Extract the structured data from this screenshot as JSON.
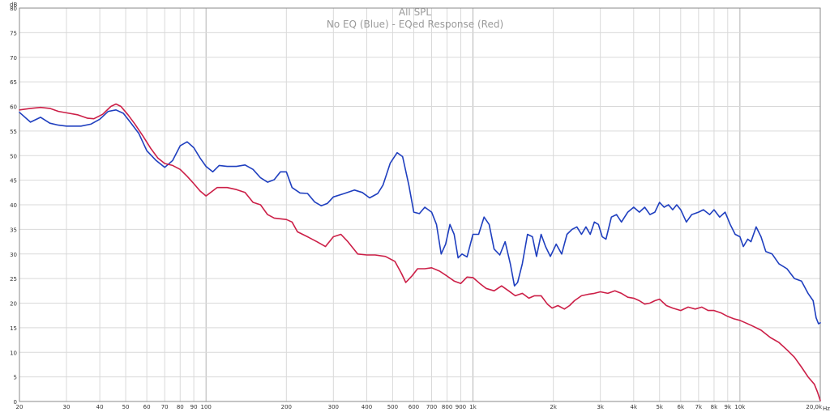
{
  "chart_data": {
    "type": "line",
    "title": "All SPL",
    "subtitle": "No EQ (Blue) - EQed Response (Red)",
    "xlabel": "",
    "ylabel": "",
    "x_unit": "Hz",
    "y_unit": "dB",
    "x_scale": "log",
    "xlim": [
      20,
      20000
    ],
    "ylim": [
      0,
      80
    ],
    "grid": true,
    "y_ticks": [
      {
        "v": 0,
        "label": "0"
      },
      {
        "v": 5,
        "label": "5"
      },
      {
        "v": 10,
        "label": "10"
      },
      {
        "v": 15,
        "label": "15"
      },
      {
        "v": 20,
        "label": "20"
      },
      {
        "v": 25,
        "label": "25"
      },
      {
        "v": 30,
        "label": "30"
      },
      {
        "v": 35,
        "label": "35"
      },
      {
        "v": 40,
        "label": "40"
      },
      {
        "v": 45,
        "label": "45"
      },
      {
        "v": 50,
        "label": "50"
      },
      {
        "v": 55,
        "label": "55"
      },
      {
        "v": 60,
        "label": "60"
      },
      {
        "v": 65,
        "label": "65"
      },
      {
        "v": 70,
        "label": "70"
      },
      {
        "v": 75,
        "label": "75"
      },
      {
        "v": 80,
        "label": "80"
      }
    ],
    "x_ticks": [
      {
        "v": 20,
        "label": "20"
      },
      {
        "v": 30,
        "label": "30"
      },
      {
        "v": 40,
        "label": "40"
      },
      {
        "v": 50,
        "label": "50"
      },
      {
        "v": 60,
        "label": "60"
      },
      {
        "v": 70,
        "label": "70"
      },
      {
        "v": 80,
        "label": "80"
      },
      {
        "v": 90,
        "label": "90"
      },
      {
        "v": 100,
        "label": "100"
      },
      {
        "v": 200,
        "label": "200"
      },
      {
        "v": 300,
        "label": "300"
      },
      {
        "v": 400,
        "label": "400"
      },
      {
        "v": 500,
        "label": "500"
      },
      {
        "v": 600,
        "label": "600"
      },
      {
        "v": 700,
        "label": "700"
      },
      {
        "v": 800,
        "label": "800"
      },
      {
        "v": 900,
        "label": "900"
      },
      {
        "v": 1000,
        "label": "1k"
      },
      {
        "v": 2000,
        "label": "2k"
      },
      {
        "v": 3000,
        "label": "3k"
      },
      {
        "v": 4000,
        "label": "4k"
      },
      {
        "v": 5000,
        "label": "5k"
      },
      {
        "v": 6000,
        "label": "6k"
      },
      {
        "v": 7000,
        "label": "7k"
      },
      {
        "v": 8000,
        "label": "8k"
      },
      {
        "v": 9000,
        "label": "9k"
      },
      {
        "v": 10000,
        "label": "10k"
      },
      {
        "v": 20000,
        "label": "20,0k"
      }
    ],
    "series": [
      {
        "color": "#1f3fbf",
        "points": [
          [
            20,
            58.8
          ],
          [
            22,
            56.8
          ],
          [
            24,
            57.8
          ],
          [
            26,
            56.6
          ],
          [
            28,
            56.2
          ],
          [
            30,
            56.0
          ],
          [
            34,
            56.0
          ],
          [
            37,
            56.4
          ],
          [
            40,
            57.4
          ],
          [
            43,
            59.0
          ],
          [
            46,
            59.3
          ],
          [
            49,
            58.6
          ],
          [
            52,
            56.8
          ],
          [
            56,
            54.5
          ],
          [
            60,
            51.0
          ],
          [
            65,
            49.0
          ],
          [
            70,
            47.6
          ],
          [
            75,
            49.0
          ],
          [
            80,
            52.0
          ],
          [
            85,
            52.8
          ],
          [
            90,
            51.6
          ],
          [
            95,
            49.5
          ],
          [
            100,
            47.8
          ],
          [
            106,
            46.7
          ],
          [
            112,
            48.0
          ],
          [
            120,
            47.8
          ],
          [
            130,
            47.8
          ],
          [
            140,
            48.1
          ],
          [
            150,
            47.2
          ],
          [
            160,
            45.5
          ],
          [
            170,
            44.6
          ],
          [
            180,
            45.1
          ],
          [
            190,
            46.7
          ],
          [
            200,
            46.7
          ],
          [
            210,
            43.5
          ],
          [
            225,
            42.4
          ],
          [
            240,
            42.3
          ],
          [
            255,
            40.6
          ],
          [
            270,
            39.8
          ],
          [
            285,
            40.3
          ],
          [
            300,
            41.6
          ],
          [
            330,
            42.3
          ],
          [
            360,
            43.0
          ],
          [
            385,
            42.5
          ],
          [
            410,
            41.4
          ],
          [
            440,
            42.3
          ],
          [
            460,
            44.0
          ],
          [
            490,
            48.5
          ],
          [
            520,
            50.6
          ],
          [
            545,
            49.8
          ],
          [
            575,
            44.0
          ],
          [
            600,
            38.5
          ],
          [
            630,
            38.2
          ],
          [
            660,
            39.5
          ],
          [
            700,
            38.5
          ],
          [
            730,
            36.0
          ],
          [
            760,
            30.0
          ],
          [
            790,
            32.0
          ],
          [
            820,
            36.0
          ],
          [
            850,
            34.0
          ],
          [
            880,
            29.2
          ],
          [
            910,
            30.0
          ],
          [
            950,
            29.4
          ],
          [
            1000,
            34.0
          ],
          [
            1050,
            34.0
          ],
          [
            1100,
            37.5
          ],
          [
            1150,
            36.0
          ],
          [
            1200,
            31.0
          ],
          [
            1260,
            29.8
          ],
          [
            1320,
            32.5
          ],
          [
            1380,
            28.0
          ],
          [
            1430,
            23.5
          ],
          [
            1470,
            24.2
          ],
          [
            1530,
            28.0
          ],
          [
            1600,
            34.0
          ],
          [
            1670,
            33.5
          ],
          [
            1730,
            29.5
          ],
          [
            1800,
            34.0
          ],
          [
            1870,
            31.5
          ],
          [
            1950,
            29.5
          ],
          [
            2050,
            32.0
          ],
          [
            2150,
            30.0
          ],
          [
            2250,
            34.0
          ],
          [
            2350,
            35.0
          ],
          [
            2450,
            35.5
          ],
          [
            2550,
            34.0
          ],
          [
            2650,
            35.5
          ],
          [
            2750,
            34.0
          ],
          [
            2850,
            36.5
          ],
          [
            2950,
            36.0
          ],
          [
            3050,
            33.5
          ],
          [
            3150,
            33.0
          ],
          [
            3300,
            37.5
          ],
          [
            3450,
            38.0
          ],
          [
            3600,
            36.5
          ],
          [
            3800,
            38.5
          ],
          [
            4000,
            39.5
          ],
          [
            4200,
            38.5
          ],
          [
            4400,
            39.5
          ],
          [
            4600,
            38.0
          ],
          [
            4800,
            38.5
          ],
          [
            5000,
            40.5
          ],
          [
            5200,
            39.5
          ],
          [
            5400,
            40.0
          ],
          [
            5600,
            39.0
          ],
          [
            5800,
            40.0
          ],
          [
            6000,
            39.0
          ],
          [
            6300,
            36.5
          ],
          [
            6600,
            38.0
          ],
          [
            7000,
            38.5
          ],
          [
            7300,
            39.0
          ],
          [
            7700,
            38.0
          ],
          [
            8000,
            39.0
          ],
          [
            8400,
            37.5
          ],
          [
            8800,
            38.5
          ],
          [
            9200,
            36.0
          ],
          [
            9600,
            34.0
          ],
          [
            10000,
            33.5
          ],
          [
            10300,
            31.5
          ],
          [
            10700,
            33.0
          ],
          [
            11000,
            32.5
          ],
          [
            11500,
            35.5
          ],
          [
            12000,
            33.5
          ],
          [
            12500,
            30.5
          ],
          [
            13200,
            30.0
          ],
          [
            14000,
            28.0
          ],
          [
            15000,
            27.0
          ],
          [
            16000,
            25.0
          ],
          [
            17000,
            24.5
          ],
          [
            18000,
            22.0
          ],
          [
            18800,
            20.5
          ],
          [
            19300,
            17.0
          ],
          [
            19700,
            15.8
          ],
          [
            20000,
            16.0
          ]
        ]
      },
      {
        "color": "#cc1f47",
        "points": [
          [
            20,
            59.3
          ],
          [
            22,
            59.6
          ],
          [
            24,
            59.8
          ],
          [
            26,
            59.6
          ],
          [
            28,
            59.0
          ],
          [
            30,
            58.7
          ],
          [
            33,
            58.3
          ],
          [
            36,
            57.6
          ],
          [
            38,
            57.5
          ],
          [
            41,
            58.4
          ],
          [
            44,
            60.0
          ],
          [
            46,
            60.5
          ],
          [
            48,
            60.0
          ],
          [
            51,
            58.3
          ],
          [
            54,
            56.5
          ],
          [
            58,
            54.0
          ],
          [
            62,
            51.5
          ],
          [
            66,
            49.5
          ],
          [
            70,
            48.4
          ],
          [
            75,
            48.0
          ],
          [
            80,
            47.2
          ],
          [
            85,
            45.8
          ],
          [
            90,
            44.3
          ],
          [
            95,
            42.8
          ],
          [
            100,
            41.8
          ],
          [
            110,
            43.5
          ],
          [
            120,
            43.5
          ],
          [
            130,
            43.1
          ],
          [
            140,
            42.5
          ],
          [
            150,
            40.5
          ],
          [
            160,
            40.0
          ],
          [
            170,
            38.0
          ],
          [
            180,
            37.3
          ],
          [
            200,
            37.0
          ],
          [
            210,
            36.5
          ],
          [
            220,
            34.5
          ],
          [
            240,
            33.5
          ],
          [
            260,
            32.5
          ],
          [
            280,
            31.5
          ],
          [
            300,
            33.5
          ],
          [
            320,
            34.0
          ],
          [
            340,
            32.5
          ],
          [
            370,
            30.0
          ],
          [
            400,
            29.8
          ],
          [
            430,
            29.8
          ],
          [
            470,
            29.5
          ],
          [
            510,
            28.5
          ],
          [
            540,
            26.0
          ],
          [
            560,
            24.2
          ],
          [
            590,
            25.5
          ],
          [
            620,
            27.0
          ],
          [
            660,
            27.0
          ],
          [
            700,
            27.2
          ],
          [
            750,
            26.5
          ],
          [
            800,
            25.5
          ],
          [
            850,
            24.5
          ],
          [
            900,
            24.0
          ],
          [
            950,
            25.3
          ],
          [
            1000,
            25.2
          ],
          [
            1060,
            24.0
          ],
          [
            1120,
            23.0
          ],
          [
            1200,
            22.5
          ],
          [
            1280,
            23.5
          ],
          [
            1360,
            22.5
          ],
          [
            1440,
            21.5
          ],
          [
            1530,
            22.0
          ],
          [
            1620,
            21.0
          ],
          [
            1700,
            21.5
          ],
          [
            1800,
            21.5
          ],
          [
            1900,
            19.8
          ],
          [
            1980,
            19.0
          ],
          [
            2080,
            19.5
          ],
          [
            2200,
            18.8
          ],
          [
            2300,
            19.5
          ],
          [
            2400,
            20.5
          ],
          [
            2550,
            21.5
          ],
          [
            2700,
            21.8
          ],
          [
            2850,
            22.0
          ],
          [
            3000,
            22.3
          ],
          [
            3200,
            22.0
          ],
          [
            3400,
            22.5
          ],
          [
            3600,
            22.0
          ],
          [
            3800,
            21.2
          ],
          [
            4000,
            21.0
          ],
          [
            4200,
            20.5
          ],
          [
            4400,
            19.8
          ],
          [
            4600,
            20.0
          ],
          [
            4800,
            20.5
          ],
          [
            5000,
            20.8
          ],
          [
            5300,
            19.5
          ],
          [
            5600,
            19.0
          ],
          [
            6000,
            18.5
          ],
          [
            6400,
            19.2
          ],
          [
            6800,
            18.8
          ],
          [
            7200,
            19.2
          ],
          [
            7600,
            18.5
          ],
          [
            8000,
            18.5
          ],
          [
            8500,
            18.0
          ],
          [
            9000,
            17.3
          ],
          [
            9500,
            16.8
          ],
          [
            10000,
            16.5
          ],
          [
            11000,
            15.5
          ],
          [
            12000,
            14.5
          ],
          [
            13000,
            13.0
          ],
          [
            14000,
            12.0
          ],
          [
            15000,
            10.5
          ],
          [
            16000,
            9.0
          ],
          [
            17000,
            7.0
          ],
          [
            18000,
            5.0
          ],
          [
            19000,
            3.5
          ],
          [
            19500,
            2.0
          ],
          [
            20000,
            0.2
          ]
        ]
      }
    ]
  }
}
